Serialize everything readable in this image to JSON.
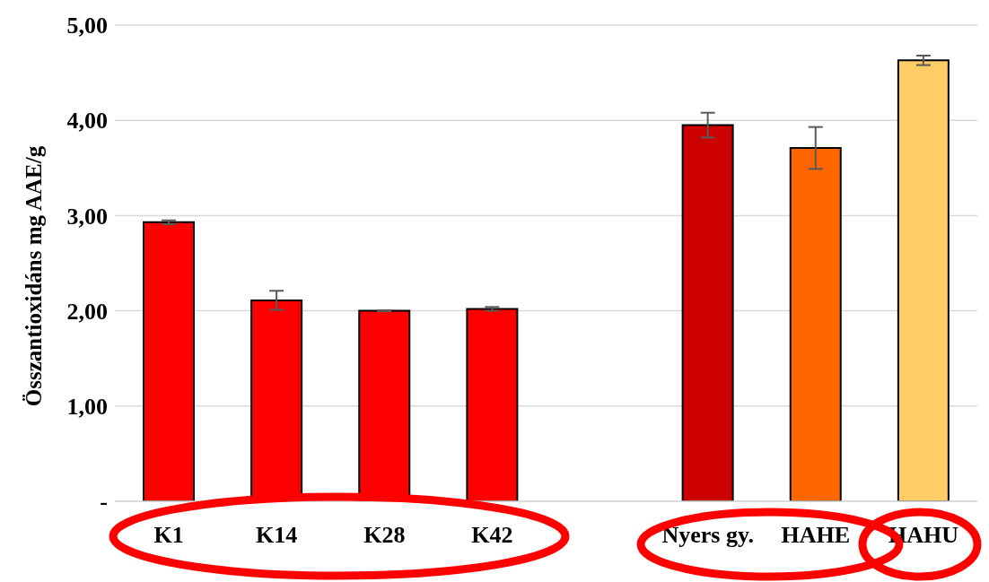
{
  "chart_data": {
    "type": "bar",
    "ylabel": "Összantioxidáns mg AAE/g",
    "categories": [
      "K1",
      "K14",
      "K28",
      "K42",
      null,
      "Nyers gy.",
      "HAHE",
      "HAHU"
    ],
    "values": [
      2.93,
      2.11,
      2.0,
      2.02,
      null,
      3.95,
      3.71,
      4.63
    ],
    "errors": [
      0.02,
      0.1,
      0.005,
      0.02,
      null,
      0.13,
      0.22,
      0.05
    ],
    "colors": [
      "#ff0000",
      "#ff0000",
      "#ff0000",
      "#ff0000",
      "#ff0000",
      "#cc0000",
      "#ff6600",
      "#ffcc66"
    ],
    "ylim": [
      0,
      5
    ],
    "yticks": [
      {
        "value": 0,
        "label": "-"
      },
      {
        "value": 1,
        "label": "1,00"
      },
      {
        "value": 2,
        "label": "2,00"
      },
      {
        "value": 3,
        "label": "3,00"
      },
      {
        "value": 4,
        "label": "4,00"
      },
      {
        "value": 5,
        "label": "5,00"
      }
    ],
    "grid": "y",
    "legend": false
  }
}
